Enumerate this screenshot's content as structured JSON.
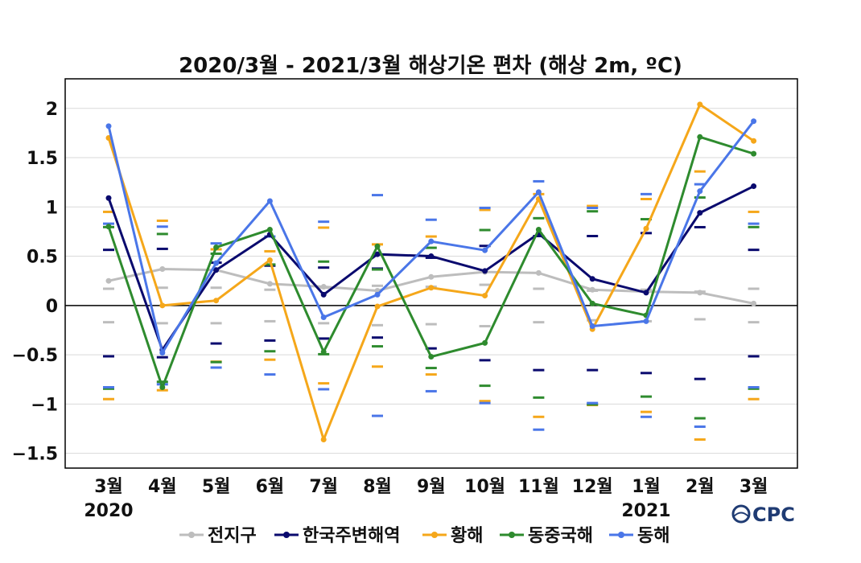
{
  "chart_data": {
    "type": "line",
    "title": "2020/3월 - 2021/3월 해상기온 편차 (해상 2m, ºC)",
    "categories": [
      "3월",
      "4월",
      "5월",
      "6월",
      "7월",
      "8월",
      "9월",
      "10월",
      "11월",
      "12월",
      "1월",
      "2월",
      "3월"
    ],
    "year_labels": [
      {
        "index": 0,
        "text": "2020"
      },
      {
        "index": 10,
        "text": "2021"
      }
    ],
    "ylim": [
      -1.65,
      2.3
    ],
    "yticks": [
      2,
      1.5,
      1,
      0.5,
      0,
      -0.5,
      -1,
      -1.5
    ],
    "ytick_labels": [
      "2",
      "1.5",
      "1",
      "0.5",
      "0",
      "−0.5",
      "−1",
      "−1.5"
    ],
    "grid": true,
    "zero_line": true,
    "legend_position": "bottom",
    "series": [
      {
        "name": "전지구",
        "color": "#bdbdbd",
        "values": [
          0.25,
          0.37,
          0.36,
          0.22,
          0.19,
          0.15,
          0.29,
          0.34,
          0.33,
          0.16,
          0.14,
          0.13,
          0.02
        ],
        "band_upper": [
          0.17,
          0.18,
          0.18,
          0.16,
          0.18,
          0.2,
          0.19,
          0.21,
          0.17,
          0.15,
          0.16,
          0.14,
          0.17
        ],
        "band_lower": [
          -0.17,
          -0.18,
          -0.18,
          -0.16,
          -0.18,
          -0.2,
          -0.19,
          -0.21,
          -0.17,
          -0.15,
          -0.16,
          -0.14,
          -0.17
        ]
      },
      {
        "name": "한국주변해역",
        "color": "#0a0a6e",
        "values": [
          1.09,
          -0.45,
          0.36,
          0.72,
          0.11,
          0.52,
          0.5,
          0.35,
          0.73,
          0.27,
          0.13,
          0.94,
          1.21
        ],
        "band_upper": [
          0.54,
          0.55,
          0.41,
          0.38,
          0.36,
          0.35,
          0.46,
          0.58,
          0.68,
          0.68,
          0.71,
          0.77,
          0.54
        ],
        "band_lower": [
          -0.54,
          -0.55,
          -0.41,
          -0.38,
          -0.36,
          -0.35,
          -0.46,
          -0.58,
          -0.68,
          -0.68,
          -0.71,
          -0.77,
          -0.54
        ]
      },
      {
        "name": "황해",
        "color": "#f5a71a",
        "values": [
          1.7,
          0.0,
          0.05,
          0.46,
          -1.36,
          -0.01,
          0.18,
          0.1,
          1.08,
          -0.24,
          0.78,
          2.04,
          1.67
        ],
        "band_upper": [
          0.95,
          0.86,
          0.57,
          0.55,
          0.79,
          0.62,
          0.7,
          0.97,
          1.13,
          1.01,
          1.08,
          1.36,
          0.95
        ],
        "band_lower": [
          -0.95,
          -0.86,
          -0.57,
          -0.55,
          -0.79,
          -0.62,
          -0.7,
          -0.97,
          -1.13,
          -1.01,
          -1.08,
          -1.36,
          -0.95
        ]
      },
      {
        "name": "동중국해",
        "color": "#2e8b2e",
        "values": [
          0.8,
          -0.83,
          0.59,
          0.77,
          -0.47,
          0.6,
          -0.52,
          -0.38,
          0.77,
          0.02,
          -0.1,
          1.71,
          1.54
        ],
        "band_upper": [
          0.82,
          0.75,
          0.55,
          0.44,
          0.47,
          0.39,
          0.61,
          0.79,
          0.91,
          0.98,
          0.9,
          1.12,
          0.82
        ],
        "band_lower": [
          -0.82,
          -0.75,
          -0.55,
          -0.44,
          -0.47,
          -0.39,
          -0.61,
          -0.79,
          -0.91,
          -0.98,
          -0.9,
          -1.12,
          -0.82
        ]
      },
      {
        "name": "동해",
        "color": "#4a76e8",
        "values": [
          1.82,
          -0.48,
          0.43,
          1.06,
          -0.12,
          0.11,
          0.65,
          0.56,
          1.15,
          -0.21,
          -0.16,
          1.16,
          1.87
        ],
        "band_upper": [
          0.83,
          0.8,
          0.63,
          0.7,
          0.85,
          1.12,
          0.87,
          0.99,
          1.26,
          0.99,
          1.13,
          1.23,
          0.83
        ],
        "band_lower": [
          -0.83,
          -0.8,
          -0.63,
          -0.7,
          -0.85,
          -1.12,
          -0.87,
          -0.99,
          -1.26,
          -0.99,
          -1.13,
          -1.23,
          -0.83
        ]
      }
    ]
  },
  "logo": {
    "text": "CPC"
  }
}
